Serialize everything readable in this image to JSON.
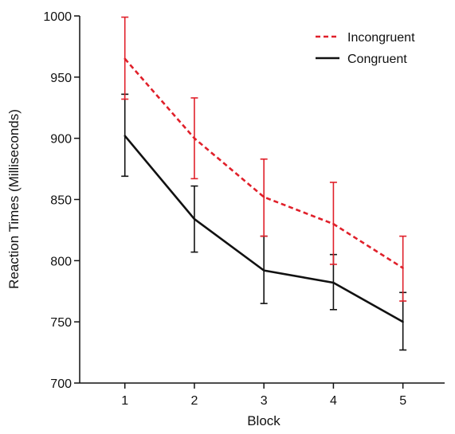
{
  "chart_data": {
    "type": "line",
    "xlabel": "Block",
    "ylabel": "Reaction Times (Milliseconds)",
    "x": [
      1,
      2,
      3,
      4,
      5
    ],
    "x_ticks": [
      "1",
      "2",
      "3",
      "4",
      "5"
    ],
    "y_ticks": [
      "700",
      "750",
      "800",
      "850",
      "900",
      "950",
      "1000"
    ],
    "xlim": [
      0.35,
      5.6
    ],
    "ylim": [
      700,
      1000
    ],
    "grid": false,
    "legend_position": "top-right",
    "series": [
      {
        "name": "Incongruent",
        "color": "#e0202a",
        "line_style": "dashed",
        "values": [
          965,
          900,
          852,
          830,
          794
        ],
        "error_low": [
          932,
          867,
          820,
          797,
          767
        ],
        "error_high": [
          999,
          933,
          883,
          864,
          820
        ]
      },
      {
        "name": "Congruent",
        "color": "#111111",
        "line_style": "solid",
        "values": [
          902,
          834,
          792,
          782,
          750
        ],
        "error_low": [
          869,
          807,
          765,
          760,
          727
        ],
        "error_high": [
          936,
          861,
          820,
          805,
          774
        ]
      }
    ]
  }
}
